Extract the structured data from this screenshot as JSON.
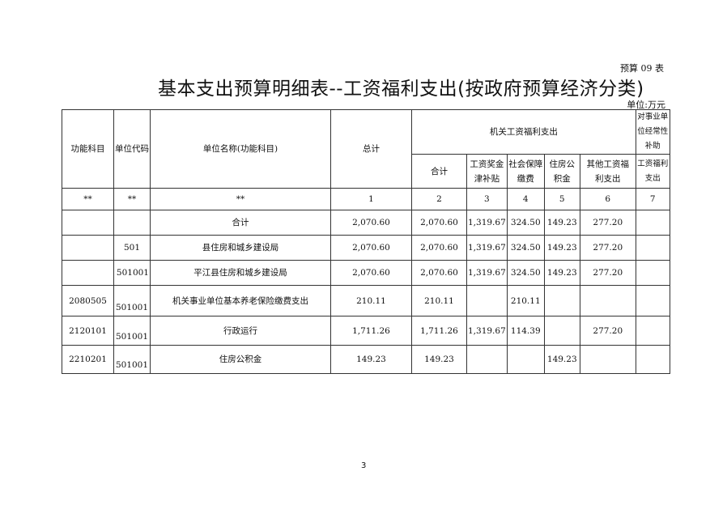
{
  "form_no": "预算 09 表",
  "title": "基本支出预算明细表--工资福利支出(按政府预算经济分类)",
  "unit": "单位:万元",
  "headers": {
    "func_subject": "功能科目",
    "unit_code": "单位代码",
    "unit_name": "单位名称(功能科目)",
    "total": "总计",
    "org_group": "机关工资福利支出",
    "sub_group": "对事业单位经常性补助",
    "subtotal": "合计",
    "wages": "工资奖金津补贴",
    "social": "社会保障缴费",
    "housing": "住房公积金",
    "other": "其他工资福利支出",
    "welfare": "工资福利支出"
  },
  "index_row": [
    "**",
    "**",
    "**",
    "1",
    "2",
    "3",
    "4",
    "5",
    "6",
    "7"
  ],
  "rows": [
    [
      "",
      "",
      "合计",
      "2,070.60",
      "2,070.60",
      "1,319.67",
      "324.50",
      "149.23",
      "277.20",
      ""
    ],
    [
      "",
      "501",
      "县住房和城乡建设局",
      "2,070.60",
      "2,070.60",
      "1,319.67",
      "324.50",
      "149.23",
      "277.20",
      ""
    ],
    [
      "",
      "501001",
      "平江县住房和城乡建设局",
      "2,070.60",
      "2,070.60",
      "1,319.67",
      "324.50",
      "149.23",
      "277.20",
      ""
    ],
    [
      "2080505",
      "501001",
      "机关事业单位基本养老保险缴费支出",
      "210.11",
      "210.11",
      "",
      "210.11",
      "",
      "",
      ""
    ],
    [
      "2120101",
      "501001",
      "行政运行",
      "1,711.26",
      "1,711.26",
      "1,319.67",
      "114.39",
      "",
      "277.20",
      ""
    ],
    [
      "2210201",
      "501001",
      "住房公积金",
      "149.23",
      "149.23",
      "",
      "",
      "149.23",
      "",
      ""
    ]
  ],
  "page_number": "3"
}
